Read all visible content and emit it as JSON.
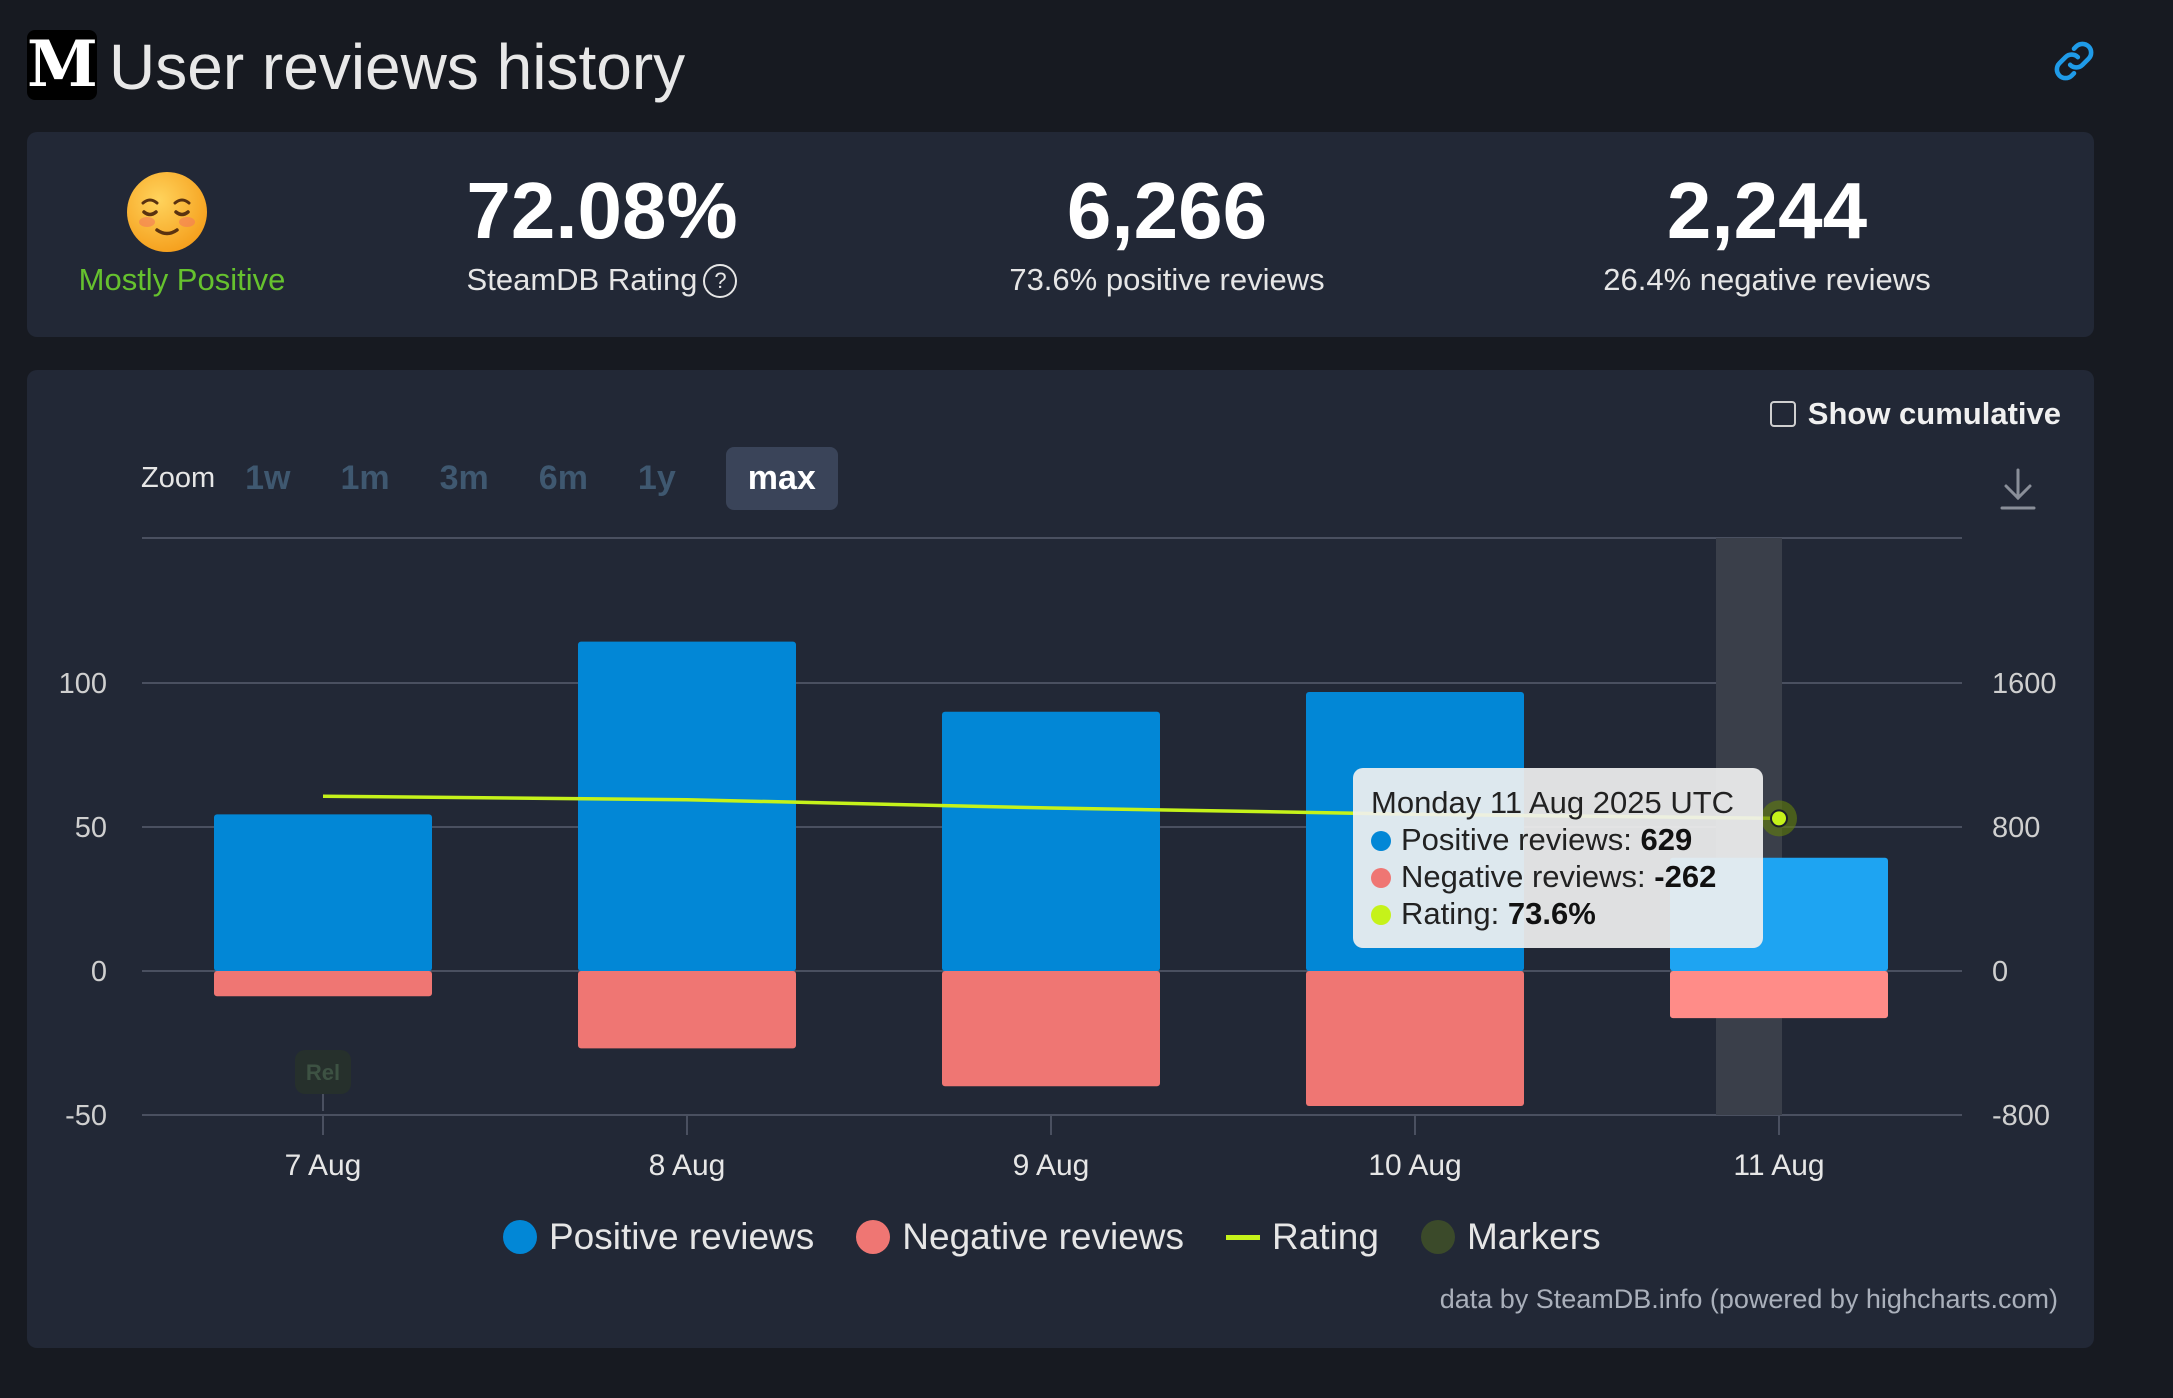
{
  "header": {
    "logo_letter": "M",
    "title": "User reviews history",
    "link_icon": "link-icon"
  },
  "summary": {
    "rating_label": "Mostly Positive",
    "rating_emoji": "relieved-face-icon",
    "steamdb_rating": "72.08%",
    "steamdb_rating_label": "SteamDB Rating",
    "positive_count": "6,266",
    "positive_label": "73.6% positive reviews",
    "negative_count": "2,244",
    "negative_label": "26.4% negative reviews"
  },
  "controls": {
    "cumulative_label": "Show cumulative",
    "cumulative_checked": false,
    "zoom_label": "Zoom",
    "zoom_options": [
      "1w",
      "1m",
      "3m",
      "6m",
      "1y",
      "max"
    ],
    "zoom_selected": "max"
  },
  "tooltip": {
    "date": "Monday 11 Aug 2025 UTC",
    "positive_label": "Positive reviews:",
    "positive_value": "629",
    "negative_label": "Negative reviews:",
    "negative_value": "-262",
    "rating_label": "Rating:",
    "rating_value": "73.6%"
  },
  "legend": {
    "positive": "Positive reviews",
    "negative": "Negative reviews",
    "rating": "Rating",
    "markers": "Markers"
  },
  "credit": "data by SteamDB.info (powered by highcharts.com)",
  "chart_data": {
    "type": "bar",
    "categories": [
      "7 Aug",
      "8 Aug",
      "9 Aug",
      "10 Aug",
      "11 Aug"
    ],
    "series": [
      {
        "name": "Positive reviews",
        "values": [
          870,
          1830,
          1440,
          1550,
          629
        ],
        "color": "#0287d6"
      },
      {
        "name": "Negative reviews",
        "values": [
          -140,
          -430,
          -640,
          -750,
          -262
        ],
        "color": "#ef7673"
      },
      {
        "name": "Rating",
        "values": [
          84.3,
          82.6,
          78.6,
          75.6,
          73.6
        ],
        "color": "#c5f21a"
      }
    ],
    "left_axis": {
      "ticks": [
        "100",
        "50",
        "0",
        "-50"
      ],
      "ylim": [
        -50,
        150
      ]
    },
    "right_axis": {
      "ticks": [
        "1600",
        "800",
        "0",
        "-800"
      ],
      "ylim": [
        -800,
        2400
      ]
    },
    "marker": {
      "category": "7 Aug",
      "label": "Rel"
    },
    "highlighted_category": "11 Aug",
    "grid": true,
    "legend_position": "bottom"
  }
}
